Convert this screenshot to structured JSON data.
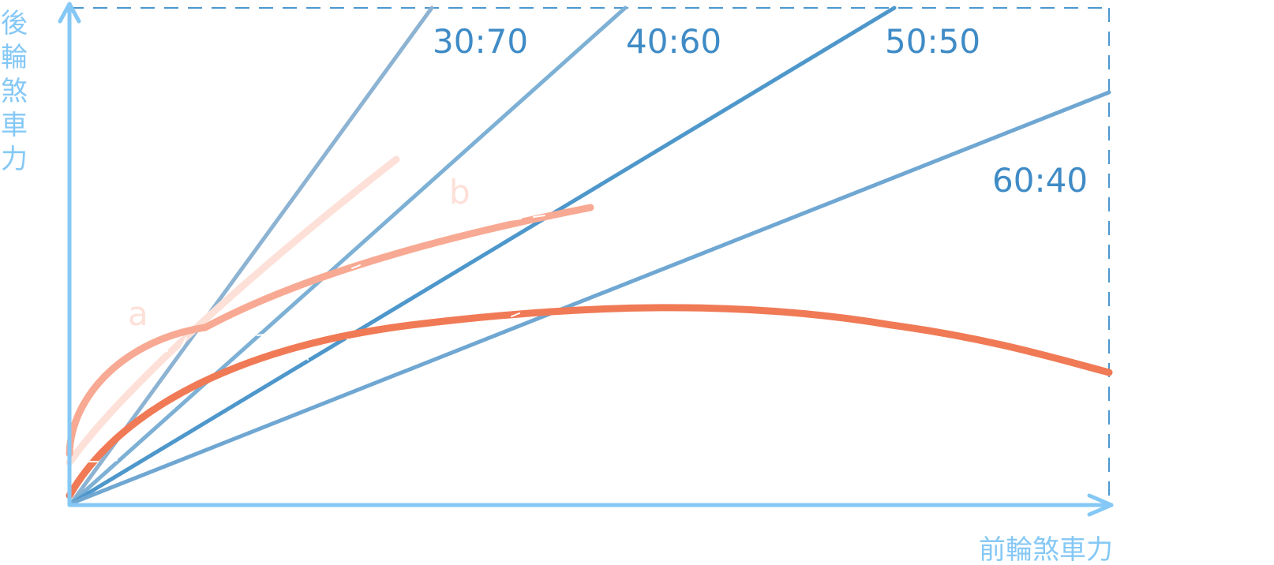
{
  "axes": {
    "y_title": [
      "後",
      "輪",
      "煞",
      "車",
      "力"
    ],
    "x_title": "前輪煞車力",
    "axis_color": "#85C8F5",
    "frame_color": "#4B97D0"
  },
  "ratio_lines": [
    {
      "label": "30:70",
      "color": "#8DB3D3"
    },
    {
      "label": "40:60",
      "color": "#7DB0D5"
    },
    {
      "label": "50:50",
      "color": "#4E97CB"
    },
    {
      "label": "60:40",
      "color": "#6FA7D2"
    }
  ],
  "curves": [
    {
      "label": "a",
      "color": "#FDE0D8"
    },
    {
      "label": "b",
      "color": "#F8A993"
    },
    {
      "label": "",
      "color": "#F07A56"
    }
  ],
  "label_color": "#3F8BC6"
}
